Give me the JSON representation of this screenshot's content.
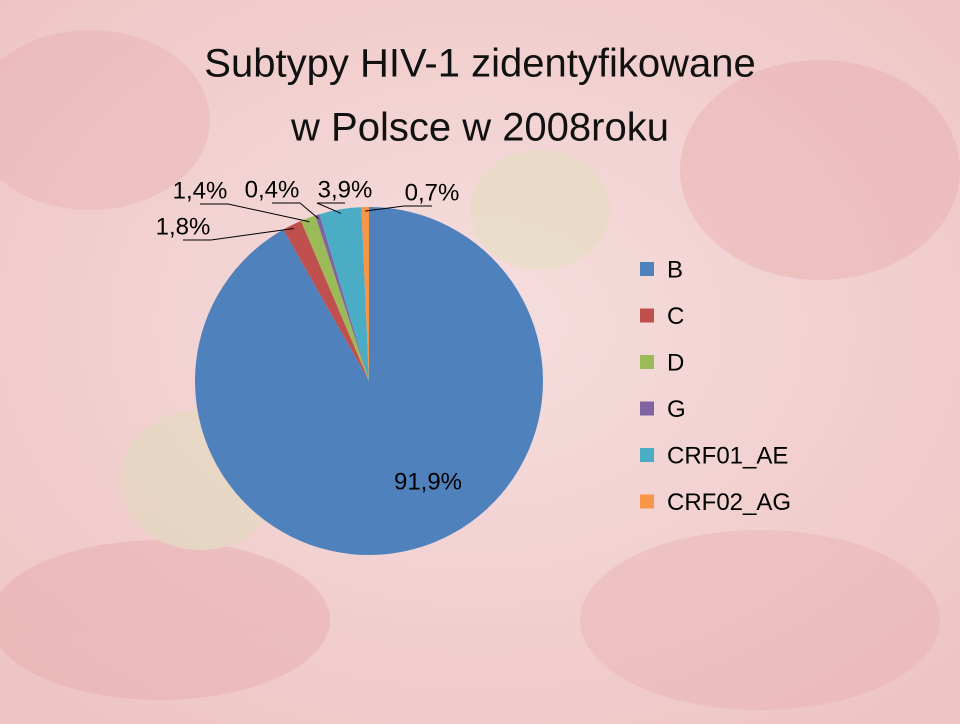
{
  "chart_data": {
    "type": "pie",
    "title": [
      "Subtypy HIV-1 zidentyfikowane",
      "w Polsce w 2008roku"
    ],
    "categories": [
      "B",
      "C",
      "D",
      "G",
      "CRF01_AE",
      "CRF02_AG"
    ],
    "values": [
      91.9,
      1.8,
      1.4,
      0.4,
      3.9,
      0.7
    ],
    "value_labels": [
      "91,9%",
      "1,8%",
      "1,4%",
      "0,4%",
      "3,9%",
      "0,7%"
    ],
    "colors": [
      "#4f81bd",
      "#c0504d",
      "#9bbb59",
      "#8064a2",
      "#4bacc6",
      "#f79646"
    ],
    "legend": "right"
  }
}
